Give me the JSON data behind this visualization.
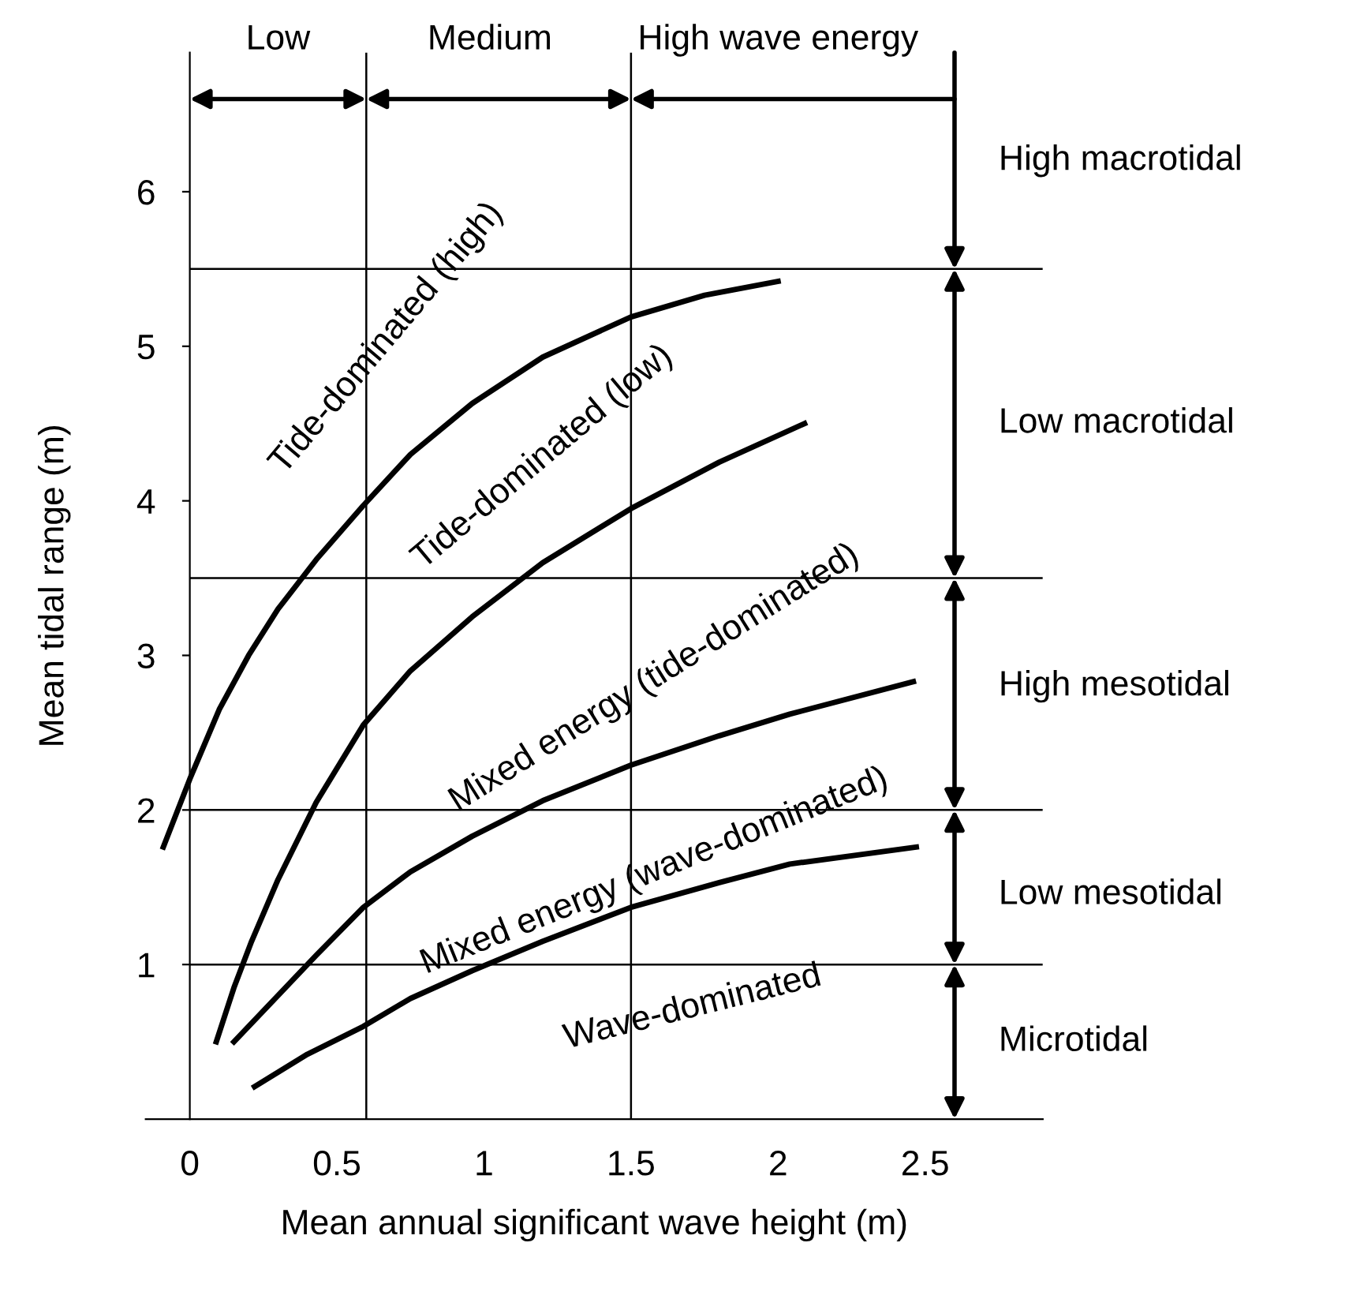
{
  "chart_data": {
    "type": "line",
    "xlabel": "Mean annual significant wave height (m)",
    "ylabel": "Mean tidal range (m)",
    "xlim": [
      -0.15,
      2.9
    ],
    "ylim": [
      0,
      6.9
    ],
    "xticks": [
      0,
      0.5,
      1,
      1.5,
      2,
      2.5
    ],
    "yticks": [
      1,
      2,
      3,
      4,
      5,
      6
    ],
    "grid": false,
    "legend": false,
    "series": [
      {
        "color": "#000000",
        "x": [
          -0.09,
          0.0,
          0.1,
          0.2,
          0.3,
          0.43,
          0.59,
          0.75,
          0.96,
          1.2,
          1.5,
          1.75,
          2.0
        ],
        "values": [
          1.76,
          2.2,
          2.65,
          3.0,
          3.3,
          3.62,
          3.97,
          4.3,
          4.63,
          4.93,
          5.19,
          5.33,
          5.42
        ]
      },
      {
        "color": "#000000",
        "x": [
          0.09,
          0.15,
          0.21,
          0.3,
          0.43,
          0.59,
          0.75,
          0.96,
          1.2,
          1.5,
          1.8,
          2.09
        ],
        "values": [
          0.5,
          0.85,
          1.15,
          1.55,
          2.05,
          2.55,
          2.9,
          3.25,
          3.6,
          3.95,
          4.25,
          4.5
        ]
      },
      {
        "color": "#000000",
        "x": [
          0.15,
          0.3,
          0.43,
          0.59,
          0.75,
          0.96,
          1.2,
          1.5,
          1.8,
          2.04,
          2.46
        ],
        "values": [
          0.5,
          0.8,
          1.06,
          1.37,
          1.6,
          1.83,
          2.06,
          2.29,
          2.48,
          2.62,
          2.83
        ]
      },
      {
        "color": "#000000",
        "x": [
          0.22,
          0.4,
          0.59,
          0.75,
          0.96,
          1.2,
          1.5,
          1.8,
          2.04,
          2.47
        ],
        "values": [
          0.21,
          0.42,
          0.6,
          0.78,
          0.96,
          1.15,
          1.37,
          1.53,
          1.65,
          1.76
        ]
      }
    ],
    "ref_lines": [
      {
        "axis": "x",
        "value": 0.6
      },
      {
        "axis": "x",
        "value": 1.5
      },
      {
        "axis": "y",
        "value": 5.5
      },
      {
        "axis": "y",
        "value": 3.5
      },
      {
        "axis": "y",
        "value": 2
      },
      {
        "axis": "y",
        "value": 1
      }
    ],
    "annotations": [
      "Low",
      "Medium",
      {
        "text": "High wave energy",
        "x": 1.5,
        "y": 6.6
      },
      "High macrotidal",
      "Low macrotidal",
      "High mesotidal",
      "Low mesotidal",
      "Microtidal",
      "Tide-dominated (high)",
      "Tide-dominated (low)",
      "Mixed energy (tide-dominated)",
      "Mixed energy (wave-dominated)",
      "Wave-dominated"
    ]
  }
}
